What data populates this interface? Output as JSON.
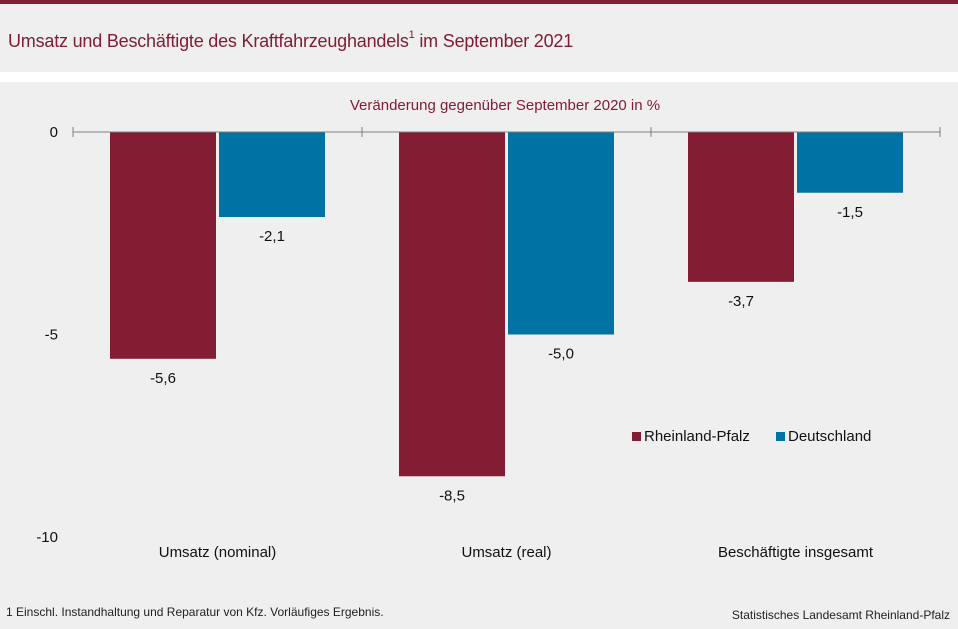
{
  "title": {
    "main": "Umsatz und Beschäftigte des Kraftfahrzeughandels",
    "sup": "1",
    "suffix": " im September 2021"
  },
  "footnote": "1 Einschl. Instandhaltung und Reparatur von Kfz. Vorläufiges Ergebnis.",
  "source": "Statistisches Landesamt Rheinland-Pfalz",
  "colors": {
    "rheinland_pfalz": "#821d33",
    "deutschland": "#0072a3",
    "title": "#821d33"
  },
  "chart_data": {
    "type": "bar",
    "title": "Veränderung gegenüber September 2020 in %",
    "categories": [
      "Umsatz (nominal)",
      "Umsatz (real)",
      "Beschäftigte insgesamt"
    ],
    "series": [
      {
        "name": "Rheinland-Pfalz",
        "values": [
          -5.6,
          -8.5,
          -3.7
        ],
        "labels": [
          "-5,6",
          "-8,5",
          "-3,7"
        ]
      },
      {
        "name": "Deutschland",
        "values": [
          -2.1,
          -5.0,
          -1.5
        ],
        "labels": [
          "-2,1",
          "-5,0",
          "-1,5"
        ]
      }
    ],
    "ylim": [
      -10,
      0
    ],
    "yticks": [
      0,
      -5,
      -10
    ],
    "ytick_labels": [
      "0",
      "-5",
      "-10"
    ],
    "legend_position": "lower-right",
    "grid": false
  }
}
